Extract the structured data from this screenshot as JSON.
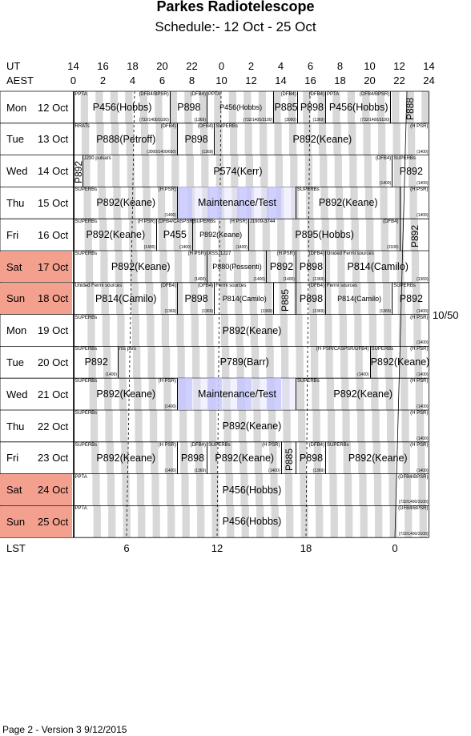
{
  "title": "Parkes Radiotelescope",
  "subtitle": "Schedule:- 12 Oct - 25 Oct",
  "axes": {
    "ut_label": "UT",
    "aest_label": "AEST",
    "lst_label": "LST",
    "ut_ticks": [
      "14",
      "16",
      "18",
      "20",
      "22",
      "0",
      "2",
      "4",
      "6",
      "8",
      "10",
      "12",
      "14"
    ],
    "aest_ticks": [
      "0",
      "2",
      "4",
      "6",
      "8",
      "10",
      "12",
      "14",
      "16",
      "18",
      "20",
      "22",
      "24"
    ],
    "lst_ticks": [
      "6",
      "12",
      "18",
      "0"
    ]
  },
  "days": [
    {
      "name": "Mon",
      "date": "12 Oct",
      "weekend": false
    },
    {
      "name": "Tue",
      "date": "13 Oct",
      "weekend": false
    },
    {
      "name": "Wed",
      "date": "14 Oct",
      "weekend": false
    },
    {
      "name": "Thu",
      "date": "15 Oct",
      "weekend": false
    },
    {
      "name": "Fri",
      "date": "16 Oct",
      "weekend": false
    },
    {
      "name": "Sat",
      "date": "17 Oct",
      "weekend": true
    },
    {
      "name": "Sun",
      "date": "18 Oct",
      "weekend": true
    },
    {
      "name": "Mon",
      "date": "19 Oct",
      "weekend": false
    },
    {
      "name": "Tue",
      "date": "20 Oct",
      "weekend": false
    },
    {
      "name": "Wed",
      "date": "21 Oct",
      "weekend": false
    },
    {
      "name": "Thu",
      "date": "22 Oct",
      "weekend": false
    },
    {
      "name": "Fri",
      "date": "23 Oct",
      "weekend": false
    },
    {
      "name": "Sat",
      "date": "24 Oct",
      "weekend": true
    },
    {
      "name": "Sun",
      "date": "25 Oct",
      "weekend": true
    }
  ],
  "blocks": [
    {
      "row": 0,
      "start": 14.0,
      "end": 20.5,
      "label": "PPTA",
      "rlabel": "(DFB4/BPSR)",
      "main": "P456(Hobbs)",
      "freq": "(732/1400/3100)"
    },
    {
      "row": 0,
      "start": 20.5,
      "end": 23.0,
      "label": "",
      "rlabel": "(DFB4)",
      "main": "P898",
      "freq": "(1369)"
    },
    {
      "row": 0,
      "start": 23.0,
      "end": 27.5,
      "label": "PPTA",
      "rlabel": "",
      "main": "P456(Hobbs)",
      "freq": "(732/1400/3100)",
      "small": true
    },
    {
      "row": 0,
      "start": 27.5,
      "end": 29.1,
      "label": "",
      "rlabel": "(DFB4)",
      "main": "P885",
      "freq": "(3000)"
    },
    {
      "row": 0,
      "start": 29.1,
      "end": 31.0,
      "label": "",
      "rlabel": "(DFB4)",
      "main": "P898",
      "freq": "(1369)"
    },
    {
      "row": 0,
      "start": 31.0,
      "end": 35.4,
      "label": "PPTA",
      "rlabel": "(DFB4/BPSR)",
      "main": "P456(Hobbs)",
      "freq": "(732/1400/3100)"
    },
    {
      "row": 0,
      "start": 35.4,
      "end": 38.0,
      "label": "",
      "rlabel": "",
      "main": "P888",
      "freq": "",
      "vertical": true
    },
    {
      "row": 1,
      "start": 14.0,
      "end": 21.0,
      "label": "RRATs",
      "rlabel": "(DFB4)",
      "main": "P888(Petroff)",
      "freq": "(3000/1400/650)"
    },
    {
      "row": 1,
      "start": 21.0,
      "end": 23.5,
      "label": "",
      "rlabel": "(DFB4)",
      "main": "P898",
      "freq": "(1369)"
    },
    {
      "row": 1,
      "start": 23.5,
      "end": 38.0,
      "label": "SUPERBs",
      "rlabel": "(H PSR)",
      "main": "P892(Keane)",
      "freq": "(1400)"
    },
    {
      "row": 2,
      "start": 14.0,
      "end": 14.6,
      "label": "",
      "rlabel": "",
      "main": "P892",
      "freq": "",
      "vertical": true
    },
    {
      "row": 2,
      "start": 14.6,
      "end": 35.5,
      "label": "J230 pulsars",
      "rlabel": "(DFB4)",
      "main": "P574(Kerr)",
      "freq": "(1400)"
    },
    {
      "row": 2,
      "start": 35.5,
      "end": 38.0,
      "label": "SUPERBs",
      "rlabel": "",
      "main": "P892",
      "freq": "(1400)"
    },
    {
      "row": 3,
      "start": 14.0,
      "end": 21.0,
      "label": "SUPERBs",
      "rlabel": "(H PSR)",
      "main": "P892(Keane)",
      "freq": "(1400)"
    },
    {
      "row": 3,
      "start": 21.0,
      "end": 29.0,
      "label": "",
      "rlabel": "",
      "main": "Maintenance/Test",
      "freq": "",
      "maint": true
    },
    {
      "row": 3,
      "start": 29.0,
      "end": 36.0,
      "label": "SUPERBs",
      "rlabel": "",
      "main": "P892(Keane)",
      "freq": ""
    },
    {
      "row": 3,
      "start": 36.0,
      "end": 38.0,
      "label": "",
      "rlabel": "(H PSR)",
      "main": "",
      "freq": "(1400)"
    },
    {
      "row": 4,
      "start": 14.0,
      "end": 19.6,
      "label": "SUPERBs",
      "rlabel": "(H PSR)",
      "main": "P892(Keane)",
      "freq": "(1400)"
    },
    {
      "row": 4,
      "start": 19.6,
      "end": 22.0,
      "label": "(DFB4/CASPSR)",
      "rlabel": "",
      "main": "P455",
      "freq": "(1400)"
    },
    {
      "row": 4,
      "start": 22.0,
      "end": 25.8,
      "label": "SUPERBs",
      "rlabel": "(H PSR)",
      "main": "P892(Keane)",
      "freq": "(1400)",
      "small": true
    },
    {
      "row": 4,
      "start": 25.8,
      "end": 36.0,
      "label": "J1909-3744",
      "rlabel": "(DFB4)",
      "main": "P895(Hobbs)",
      "freq": "(3100)"
    },
    {
      "row": 4,
      "start": 36.0,
      "end": 38.0,
      "label": "",
      "rlabel": "",
      "main": "P892",
      "freq": "",
      "vertical": true
    },
    {
      "row": 5,
      "start": 14.0,
      "end": 23.0,
      "label": "SUPERBs",
      "rlabel": "(H PSR)",
      "main": "P892(Keane)",
      "freq": "(1400)"
    },
    {
      "row": 5,
      "start": 23.0,
      "end": 27.0,
      "label": "XSSJ1227",
      "rlabel": "",
      "main": "P880(Possenti)",
      "freq": "(1400)",
      "small": true
    },
    {
      "row": 5,
      "start": 27.0,
      "end": 29.0,
      "label": "",
      "rlabel": "(H PSR)",
      "main": "P892",
      "freq": "(1400)"
    },
    {
      "row": 5,
      "start": 29.0,
      "end": 31.0,
      "label": "",
      "rlabel": "(DFB4)",
      "main": "P898",
      "freq": "(1369)"
    },
    {
      "row": 5,
      "start": 31.0,
      "end": 38.0,
      "label": "Unided Fermi sources",
      "rlabel": "",
      "main": "P814(Camilo)",
      "freq": "(1369)"
    },
    {
      "row": 6,
      "start": 14.0,
      "end": 21.0,
      "label": "Unided Fermi sources",
      "rlabel": "(DFB4)",
      "main": "P814(Camilo)",
      "freq": "(1369)"
    },
    {
      "row": 6,
      "start": 21.0,
      "end": 23.5,
      "label": "",
      "rlabel": "(DFB4)",
      "main": "P898",
      "freq": "(1369)"
    },
    {
      "row": 6,
      "start": 23.5,
      "end": 27.5,
      "label": "Fermi sources",
      "rlabel": "",
      "main": "P814(Camilo)",
      "freq": "(1369)",
      "small": true
    },
    {
      "row": 6,
      "start": 27.5,
      "end": 29.0,
      "label": "",
      "rlabel": "",
      "main": "P885",
      "freq": "",
      "vertical": true
    },
    {
      "row": 6,
      "start": 29.0,
      "end": 31.0,
      "label": "",
      "rlabel": "(DFB4)",
      "main": "P898",
      "freq": "(1369)"
    },
    {
      "row": 6,
      "start": 31.0,
      "end": 35.5,
      "label": "Fermi sources",
      "rlabel": "",
      "main": "P814(Camilo)",
      "freq": "(1369)",
      "small": true
    },
    {
      "row": 6,
      "start": 35.5,
      "end": 38.0,
      "label": "SUPERBs",
      "rlabel": "",
      "main": "P892",
      "freq": "(1400)"
    },
    {
      "row": 7,
      "start": 14.0,
      "end": 38.0,
      "label": "SUPERBs",
      "rlabel": "(H PSR)",
      "main": "P892(Keane)",
      "freq": "(1400)"
    },
    {
      "row": 8,
      "start": 14.0,
      "end": 17.0,
      "label": "SUPERBs",
      "rlabel": "",
      "main": "P892",
      "freq": "(1400)"
    },
    {
      "row": 8,
      "start": 17.0,
      "end": 34.0,
      "label": "ms psrs",
      "rlabel": "(H PSR/CASPSR/DFB4)",
      "main": "P789(Barr)",
      "freq": "(1400)"
    },
    {
      "row": 8,
      "start": 34.0,
      "end": 38.0,
      "label": "SUPERBs",
      "rlabel": "(H PSR)",
      "main": "P892(Keane)",
      "freq": "(1400)"
    },
    {
      "row": 9,
      "start": 14.0,
      "end": 21.0,
      "label": "SUPERBs",
      "rlabel": "(H PSR)",
      "main": "P892(Keane)",
      "freq": "(1400)"
    },
    {
      "row": 9,
      "start": 21.0,
      "end": 29.0,
      "label": "",
      "rlabel": "",
      "main": "Maintenance/Test",
      "freq": "",
      "maint": true
    },
    {
      "row": 9,
      "start": 29.0,
      "end": 38.0,
      "label": "SUPERBs",
      "rlabel": "(H PSR)",
      "main": "P892(Keane)",
      "freq": "(1400)"
    },
    {
      "row": 10,
      "start": 14.0,
      "end": 38.0,
      "label": "SUPERBs",
      "rlabel": "(H PSR)",
      "main": "P892(Keane)",
      "freq": "(1400)"
    },
    {
      "row": 11,
      "start": 14.0,
      "end": 21.0,
      "label": "SUPERBs",
      "rlabel": "(H PSR)",
      "main": "P892(Keane)",
      "freq": "(1400)"
    },
    {
      "row": 11,
      "start": 21.0,
      "end": 23.0,
      "label": "",
      "rlabel": "(DFB4)",
      "main": "P898",
      "freq": "(1369)"
    },
    {
      "row": 11,
      "start": 23.0,
      "end": 28.0,
      "label": "SUPERBs",
      "rlabel": "(H PSR)",
      "main": "P892(Keane)",
      "freq": "(1400)"
    },
    {
      "row": 11,
      "start": 28.0,
      "end": 29.0,
      "label": "",
      "rlabel": "",
      "main": "P885",
      "freq": "",
      "vertical": true
    },
    {
      "row": 11,
      "start": 29.0,
      "end": 31.0,
      "label": "",
      "rlabel": "(DFB4)",
      "main": "P898",
      "freq": "(1369)"
    },
    {
      "row": 11,
      "start": 31.0,
      "end": 38.0,
      "label": "SUPERBs",
      "rlabel": "(H PSR)",
      "main": "P892(Keane)",
      "freq": "(1400)"
    },
    {
      "row": 12,
      "start": 14.0,
      "end": 38.0,
      "label": "PPTA",
      "rlabel": "(DFB4/BPSR)",
      "main": "P456(Hobbs)",
      "freq": "(732/1400/3100)"
    },
    {
      "row": 13,
      "start": 14.0,
      "end": 38.0,
      "label": "PPTA",
      "rlabel": "(DFB4/BPSR)",
      "main": "P456(Hobbs)",
      "freq": "(732/1400/3100)"
    }
  ],
  "side_note": "10/50",
  "footer": "Page 2 - Version 3  9/12/2015"
}
